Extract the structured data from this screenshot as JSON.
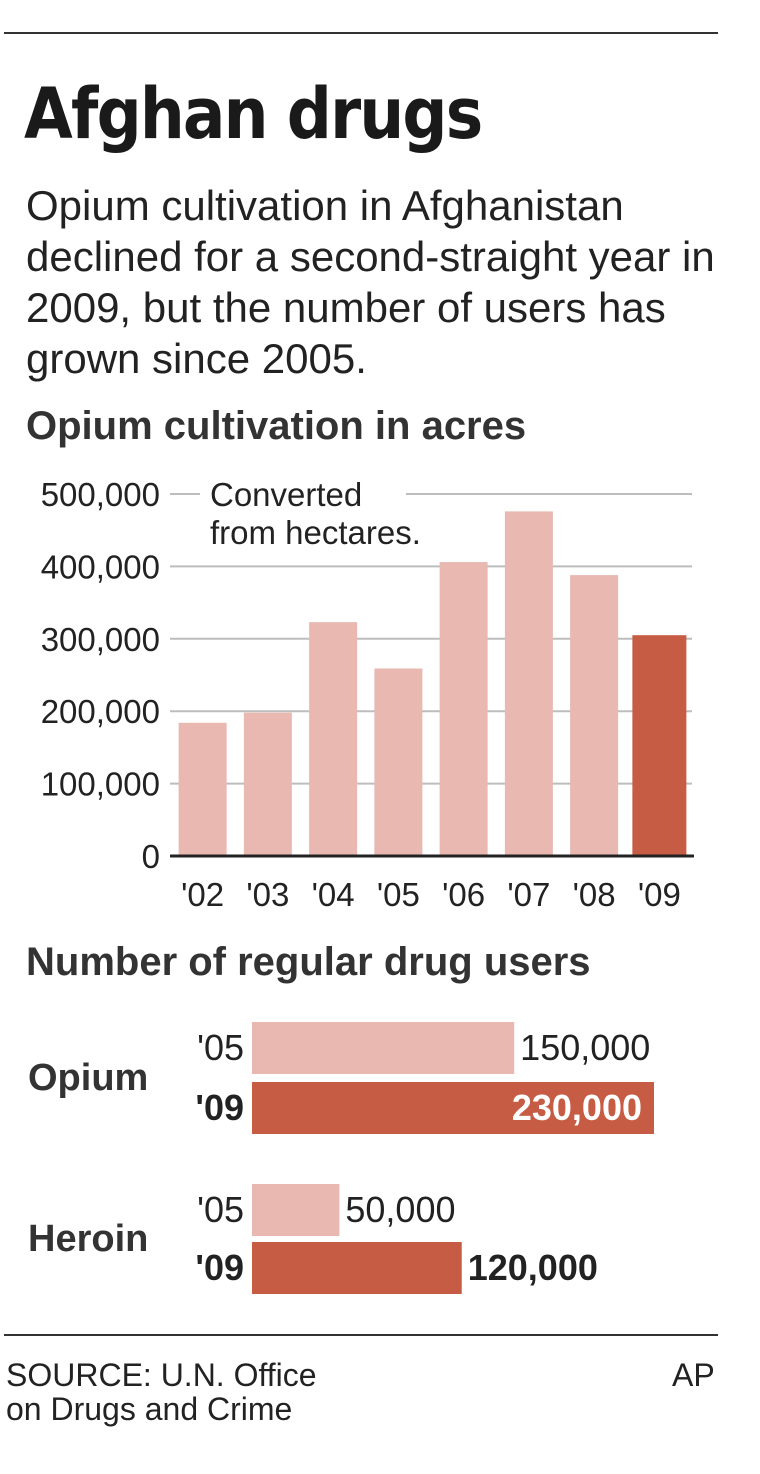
{
  "title": "Afghan drugs",
  "subtitle": "Opium cultivation in Afghanistan declined for a second-straight year in 2009, but the number of users has grown since 2005.",
  "colors": {
    "light_bar": "#e9b8b1",
    "highlight_bar": "#c65c44",
    "grid": "#bdbdbd",
    "axis": "#222222"
  },
  "chart_data": [
    {
      "type": "bar",
      "title": "Opium cultivation in acres",
      "note": [
        "Converted",
        "from hectares."
      ],
      "categories": [
        "'02",
        "'03",
        "'04",
        "'05",
        "'06",
        "'07",
        "'08",
        "'09"
      ],
      "values": [
        184000,
        198000,
        323000,
        259000,
        406000,
        476000,
        388000,
        305000
      ],
      "highlight_index": 7,
      "ylim": [
        0,
        500000
      ],
      "yticks": [
        0,
        100000,
        200000,
        300000,
        400000,
        500000
      ],
      "ytick_labels": [
        "0",
        "100,000",
        "200,000",
        "300,000",
        "400,000",
        "500,000"
      ],
      "grid": true
    },
    {
      "type": "bar",
      "orientation": "horizontal",
      "title": "Number of regular drug users",
      "groups": [
        {
          "label": "Opium",
          "rows": [
            {
              "year": "'05",
              "value": 150000,
              "value_label": "150,000",
              "highlight": false
            },
            {
              "year": "'09",
              "value": 230000,
              "value_label": "230,000",
              "highlight": true
            }
          ]
        },
        {
          "label": "Heroin",
          "rows": [
            {
              "year": "'05",
              "value": 50000,
              "value_label": "50,000",
              "highlight": false
            },
            {
              "year": "'09",
              "value": 120000,
              "value_label": "120,000",
              "highlight": true
            }
          ]
        }
      ]
    }
  ],
  "footer": {
    "source_line1": "SOURCE: U.N. Office",
    "source_line2": "on Drugs and Crime",
    "credit": "AP"
  }
}
